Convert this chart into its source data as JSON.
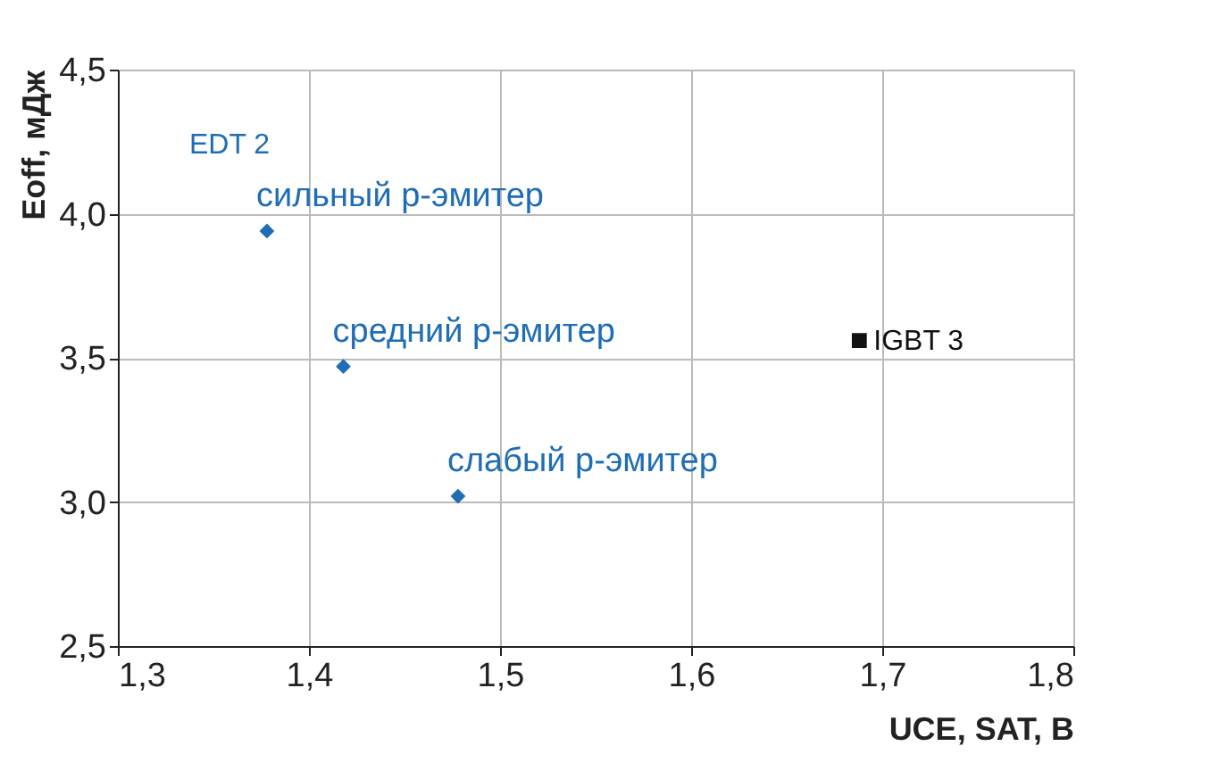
{
  "chart_data": {
    "type": "scatter",
    "xlabel": "UCE, SAT, В",
    "ylabel": "Eoff, мДж",
    "series": [
      {
        "color": "#1f6db5",
        "x": [
          1.378,
          1.418,
          1.478
        ],
        "values": [
          3.94,
          3.47,
          3.02
        ],
        "marker": "diamond"
      },
      {
        "color": "#111111",
        "x": [
          1.688
        ],
        "values": [
          3.56
        ],
        "marker": "square"
      }
    ],
    "xlim": [
      1.3,
      1.8
    ],
    "ylim": [
      2.5,
      4.5
    ],
    "xticks": [
      {
        "value": 1.3,
        "label": "1,3"
      },
      {
        "value": 1.4,
        "label": "1,4"
      },
      {
        "value": 1.5,
        "label": "1,5"
      },
      {
        "value": 1.6,
        "label": "1,6"
      },
      {
        "value": 1.7,
        "label": "1,7"
      },
      {
        "value": 1.8,
        "label": "1,8"
      }
    ],
    "yticks": [
      {
        "value": 2.5,
        "label": "2,5"
      },
      {
        "value": 3.0,
        "label": "3,0"
      },
      {
        "value": 3.5,
        "label": "3,5"
      },
      {
        "value": 4.0,
        "label": "4,0"
      },
      {
        "value": 4.5,
        "label": "4,5"
      }
    ],
    "grid": true,
    "legend": false,
    "annotations": [
      "EDT 2",
      {
        "text": "сильный p-эмитер",
        "x": 1.378,
        "y": 3.94
      },
      {
        "text": "средний p-эмитер",
        "x": 1.418,
        "y": 3.47
      },
      {
        "text": "слабый p-эмитер",
        "x": 1.478,
        "y": 3.02
      },
      {
        "text": "IGBT 3",
        "x": 1.688,
        "y": 3.56
      }
    ]
  }
}
